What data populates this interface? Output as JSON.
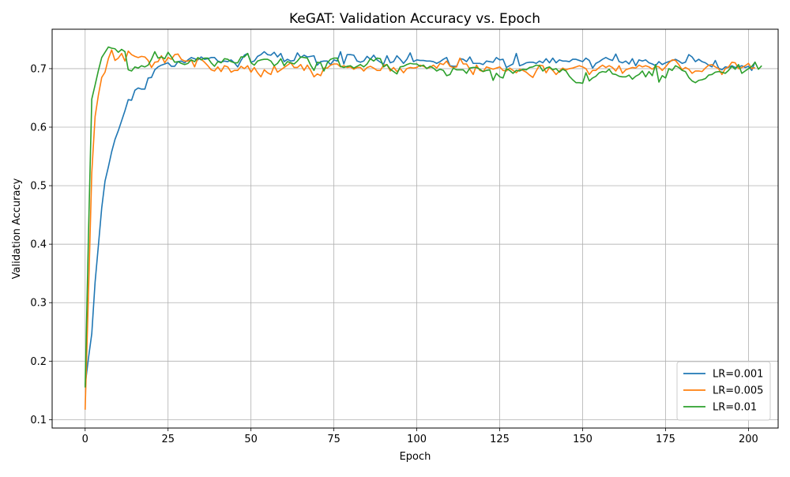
{
  "chart_data": {
    "type": "line",
    "title": "KeGAT: Validation Accuracy vs. Epoch",
    "xlabel": "Epoch",
    "ylabel": "Validation Accuracy",
    "xlim": [
      -9.95,
      208.95
    ],
    "ylim": [
      0.0857,
      0.7674
    ],
    "xticks": [
      0,
      25,
      50,
      75,
      100,
      125,
      150,
      175,
      200
    ],
    "yticks": [
      0.1,
      0.2,
      0.3,
      0.4,
      0.5,
      0.6,
      0.7
    ],
    "ytick_labels": [
      "0.1",
      "0.2",
      "0.3",
      "0.4",
      "0.5",
      "0.6",
      "0.7"
    ],
    "grid": true,
    "legend_position": "bottom-right",
    "series": [
      {
        "name": "LR=0.001",
        "color": "#1f77b4",
        "values": [
          0.159,
          0.205,
          0.247,
          0.335,
          0.398,
          0.462,
          0.508,
          0.532,
          0.558,
          0.579,
          0.594,
          0.611,
          0.628,
          0.647,
          0.646,
          0.663,
          0.667,
          0.665,
          0.665,
          0.684,
          0.685,
          0.698,
          0.703,
          0.706,
          0.708,
          0.71,
          0.704,
          0.704,
          0.712,
          0.713,
          0.71,
          0.715,
          0.719,
          0.717,
          0.715,
          0.72,
          0.716,
          0.717,
          0.719,
          0.719,
          0.713,
          0.711,
          0.713,
          0.712,
          0.715,
          0.71,
          0.703,
          0.714,
          0.723,
          0.726,
          0.711,
          0.713,
          0.721,
          0.724,
          0.729,
          0.724,
          0.723,
          0.728,
          0.72,
          0.726,
          0.712,
          0.716,
          0.713,
          0.714,
          0.727,
          0.719,
          0.723,
          0.72,
          0.721,
          0.722,
          0.706,
          0.712,
          0.713,
          0.713,
          0.707,
          0.715,
          0.713,
          0.729,
          0.708,
          0.724,
          0.724,
          0.723,
          0.713,
          0.711,
          0.713,
          0.721,
          0.716,
          0.723,
          0.715,
          0.711,
          0.708,
          0.722,
          0.71,
          0.712,
          0.722,
          0.716,
          0.709,
          0.716,
          0.727,
          0.712,
          0.715,
          0.714,
          0.714,
          0.713,
          0.713,
          0.712,
          0.709,
          0.712,
          0.716,
          0.719,
          0.705,
          0.704,
          0.704,
          0.717,
          0.716,
          0.712,
          0.72,
          0.709,
          0.709,
          0.709,
          0.707,
          0.713,
          0.712,
          0.711,
          0.719,
          0.715,
          0.716,
          0.702,
          0.705,
          0.708,
          0.726,
          0.705,
          0.707,
          0.71,
          0.711,
          0.711,
          0.709,
          0.713,
          0.71,
          0.717,
          0.71,
          0.718,
          0.71,
          0.715,
          0.713,
          0.713,
          0.712,
          0.716,
          0.716,
          0.714,
          0.712,
          0.718,
          0.714,
          0.701,
          0.709,
          0.712,
          0.716,
          0.719,
          0.716,
          0.714,
          0.725,
          0.712,
          0.71,
          0.713,
          0.708,
          0.717,
          0.705,
          0.715,
          0.713,
          0.715,
          0.71,
          0.708,
          0.705,
          0.712,
          0.707,
          0.71,
          0.712,
          0.714,
          0.716,
          0.713,
          0.709,
          0.711,
          0.724,
          0.72,
          0.712,
          0.716,
          0.712,
          0.71,
          0.706,
          0.703,
          0.714,
          0.701,
          0.698,
          0.703,
          0.702,
          0.705,
          0.702,
          0.703,
          0.705,
          0.702,
          0.704,
          0.697,
          0.712
        ]
      },
      {
        "name": "LR=0.005",
        "color": "#ff7f0e",
        "values": [
          0.117,
          0.314,
          0.522,
          0.618,
          0.655,
          0.685,
          0.694,
          0.717,
          0.732,
          0.714,
          0.718,
          0.726,
          0.713,
          0.73,
          0.724,
          0.721,
          0.719,
          0.721,
          0.72,
          0.714,
          0.702,
          0.711,
          0.712,
          0.722,
          0.71,
          0.719,
          0.716,
          0.724,
          0.725,
          0.716,
          0.713,
          0.713,
          0.715,
          0.703,
          0.718,
          0.716,
          0.711,
          0.705,
          0.698,
          0.696,
          0.703,
          0.695,
          0.705,
          0.703,
          0.694,
          0.697,
          0.697,
          0.704,
          0.7,
          0.705,
          0.694,
          0.702,
          0.693,
          0.686,
          0.698,
          0.693,
          0.69,
          0.705,
          0.694,
          0.698,
          0.702,
          0.706,
          0.71,
          0.702,
          0.702,
          0.707,
          0.697,
          0.706,
          0.697,
          0.686,
          0.691,
          0.688,
          0.701,
          0.701,
          0.706,
          0.708,
          0.708,
          0.703,
          0.705,
          0.702,
          0.703,
          0.699,
          0.702,
          0.702,
          0.696,
          0.702,
          0.704,
          0.701,
          0.697,
          0.697,
          0.706,
          0.707,
          0.696,
          0.702,
          0.695,
          0.7,
          0.693,
          0.7,
          0.702,
          0.701,
          0.702,
          0.706,
          0.704,
          0.701,
          0.702,
          0.706,
          0.701,
          0.709,
          0.707,
          0.713,
          0.704,
          0.702,
          0.703,
          0.718,
          0.708,
          0.708,
          0.699,
          0.69,
          0.706,
          0.697,
          0.695,
          0.703,
          0.701,
          0.699,
          0.701,
          0.703,
          0.697,
          0.696,
          0.701,
          0.697,
          0.693,
          0.699,
          0.697,
          0.694,
          0.689,
          0.685,
          0.696,
          0.706,
          0.705,
          0.693,
          0.702,
          0.697,
          0.69,
          0.696,
          0.701,
          0.698,
          0.7,
          0.701,
          0.703,
          0.705,
          0.703,
          0.7,
          0.69,
          0.697,
          0.697,
          0.702,
          0.706,
          0.702,
          0.705,
          0.702,
          0.696,
          0.705,
          0.692,
          0.698,
          0.7,
          0.702,
          0.701,
          0.706,
          0.703,
          0.705,
          0.703,
          0.699,
          0.704,
          0.703,
          0.697,
          0.703,
          0.71,
          0.715,
          0.714,
          0.707,
          0.698,
          0.702,
          0.699,
          0.692,
          0.696,
          0.696,
          0.695,
          0.701,
          0.706,
          0.707,
          0.703,
          0.7,
          0.69,
          0.7,
          0.703,
          0.711,
          0.71,
          0.7,
          0.702,
          0.705,
          0.709,
          0.7,
          0.702
        ]
      },
      {
        "name": "LR=0.01",
        "color": "#2ca02c",
        "values": [
          0.155,
          0.415,
          0.648,
          0.672,
          0.697,
          0.719,
          0.728,
          0.737,
          0.735,
          0.734,
          0.728,
          0.733,
          0.729,
          0.698,
          0.696,
          0.703,
          0.701,
          0.705,
          0.703,
          0.706,
          0.716,
          0.729,
          0.718,
          0.72,
          0.717,
          0.728,
          0.72,
          0.711,
          0.712,
          0.709,
          0.707,
          0.709,
          0.715,
          0.712,
          0.719,
          0.715,
          0.718,
          0.718,
          0.71,
          0.704,
          0.712,
          0.71,
          0.717,
          0.716,
          0.712,
          0.71,
          0.71,
          0.72,
          0.72,
          0.726,
          0.71,
          0.706,
          0.713,
          0.715,
          0.716,
          0.716,
          0.713,
          0.705,
          0.709,
          0.717,
          0.705,
          0.712,
          0.71,
          0.708,
          0.713,
          0.72,
          0.719,
          0.718,
          0.706,
          0.697,
          0.711,
          0.71,
          0.696,
          0.71,
          0.716,
          0.718,
          0.718,
          0.704,
          0.702,
          0.704,
          0.705,
          0.701,
          0.704,
          0.707,
          0.703,
          0.708,
          0.717,
          0.713,
          0.718,
          0.717,
          0.703,
          0.707,
          0.699,
          0.695,
          0.691,
          0.703,
          0.704,
          0.707,
          0.709,
          0.708,
          0.708,
          0.704,
          0.706,
          0.7,
          0.704,
          0.701,
          0.696,
          0.699,
          0.697,
          0.688,
          0.69,
          0.701,
          0.698,
          0.698,
          0.698,
          0.692,
          0.701,
          0.702,
          0.702,
          0.699,
          0.695,
          0.697,
          0.698,
          0.68,
          0.692,
          0.686,
          0.684,
          0.7,
          0.697,
          0.692,
          0.697,
          0.696,
          0.699,
          0.698,
          0.702,
          0.703,
          0.706,
          0.705,
          0.696,
          0.701,
          0.703,
          0.698,
          0.7,
          0.694,
          0.699,
          0.696,
          0.687,
          0.681,
          0.676,
          0.676,
          0.675,
          0.693,
          0.679,
          0.684,
          0.687,
          0.693,
          0.695,
          0.694,
          0.699,
          0.691,
          0.69,
          0.687,
          0.686,
          0.686,
          0.689,
          0.682,
          0.687,
          0.69,
          0.696,
          0.686,
          0.695,
          0.688,
          0.707,
          0.677,
          0.688,
          0.684,
          0.7,
          0.697,
          0.705,
          0.702,
          0.697,
          0.695,
          0.685,
          0.679,
          0.676,
          0.68,
          0.681,
          0.683,
          0.689,
          0.69,
          0.694,
          0.695,
          0.694,
          0.692,
          0.697,
          0.704,
          0.699,
          0.707,
          0.692,
          0.696,
          0.7,
          0.704,
          0.711,
          0.699,
          0.705
        ]
      }
    ]
  }
}
